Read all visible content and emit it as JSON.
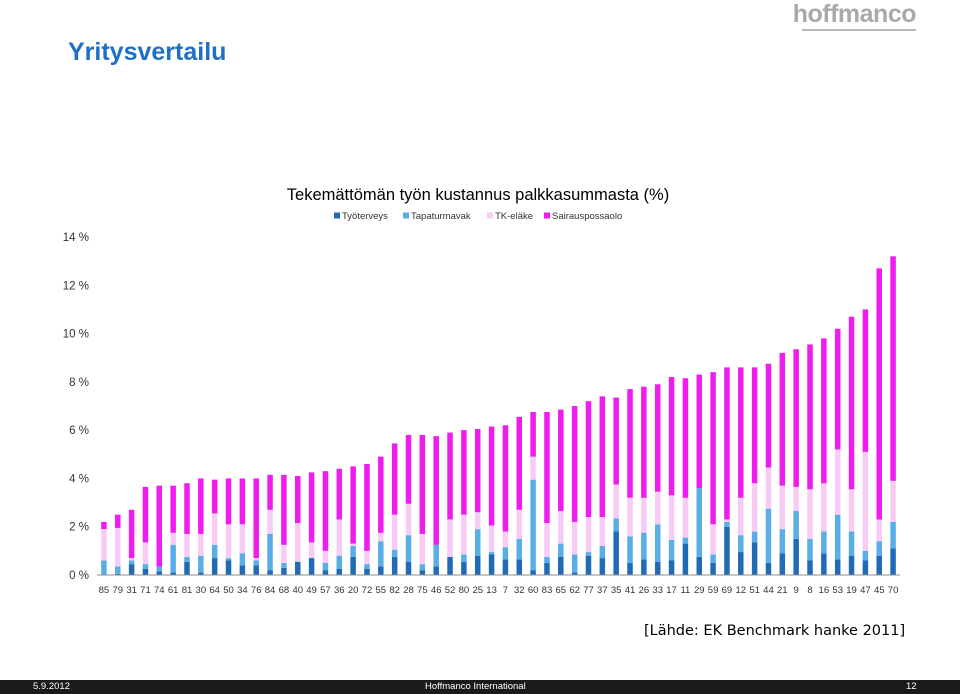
{
  "logo_text": "hoffmanco",
  "page_title": "Yritysvertailu",
  "source_note": "[Lähde: EK Benchmark hanke 2011]",
  "footer": {
    "date": "5.9.2012",
    "center": "Hoffmanco International",
    "page": "12"
  },
  "chart_data": {
    "type": "bar",
    "stacked": true,
    "title": "Tekemättömän työn kustannus  palkkasummasta (%)",
    "xlabel": "",
    "ylabel": "",
    "ylim": [
      0,
      14
    ],
    "yticks": [
      0,
      2,
      4,
      6,
      8,
      10,
      12,
      14
    ],
    "ytick_labels": [
      "0 %",
      "2 %",
      "4 %",
      "6 %",
      "8 %",
      "10 %",
      "12 %",
      "14 %"
    ],
    "grid": false,
    "legend_position": "top",
    "categories": [
      "85",
      "79",
      "31",
      "71",
      "74",
      "61",
      "81",
      "30",
      "64",
      "50",
      "34",
      "76",
      "84",
      "68",
      "40",
      "49",
      "57",
      "36",
      "20",
      "72",
      "55",
      "82",
      "28",
      "75",
      "46",
      "52",
      "80",
      "25",
      "13",
      "7",
      "32",
      "60",
      "83",
      "65",
      "62",
      "77",
      "37",
      "35",
      "41",
      "26",
      "33",
      "17",
      "11",
      "29",
      "59",
      "69",
      "12",
      "51",
      "44",
      "21",
      "9",
      "8",
      "16",
      "53",
      "19",
      "47",
      "45",
      "70"
    ],
    "series": [
      {
        "name": "Työterveys",
        "color": "#1f6bb5",
        "values": [
          0.0,
          0.05,
          0.45,
          0.25,
          0.15,
          0.1,
          0.55,
          0.1,
          0.7,
          0.6,
          0.4,
          0.4,
          0.2,
          0.3,
          0.55,
          0.7,
          0.2,
          0.25,
          0.75,
          0.25,
          0.35,
          0.75,
          0.55,
          0.2,
          0.35,
          0.75,
          0.55,
          0.8,
          0.85,
          0.65,
          0.65,
          0.2,
          0.5,
          0.75,
          0.1,
          0.8,
          0.7,
          1.8,
          0.5,
          0.65,
          0.55,
          0.6,
          1.3,
          0.75,
          0.5,
          2.0,
          0.95,
          1.35,
          0.5,
          0.9,
          1.5,
          0.6,
          0.9,
          0.65,
          0.8,
          0.6,
          0.8,
          1.1
        ]
      },
      {
        "name": "Tapaturmavak",
        "color": "#5aaee6",
        "values": [
          0.6,
          0.3,
          0.15,
          0.2,
          0.2,
          1.15,
          0.2,
          0.7,
          0.55,
          0.1,
          0.5,
          0.2,
          1.5,
          0.2,
          0.0,
          0.0,
          0.3,
          0.55,
          0.45,
          0.2,
          1.05,
          0.3,
          1.1,
          0.25,
          0.9,
          0.0,
          0.3,
          1.1,
          0.1,
          0.5,
          0.85,
          3.75,
          0.25,
          0.55,
          0.75,
          0.15,
          0.5,
          0.55,
          1.1,
          1.1,
          1.55,
          0.85,
          0.25,
          2.85,
          0.35,
          0.2,
          0.7,
          0.45,
          2.25,
          1.0,
          1.15,
          0.9,
          0.9,
          1.85,
          1.0,
          0.4,
          0.6,
          1.1
        ]
      },
      {
        "name": "TK-eläke",
        "color": "#f6ccf5",
        "values": [
          1.3,
          1.6,
          0.1,
          0.9,
          0.0,
          0.5,
          0.95,
          0.9,
          1.3,
          1.4,
          1.2,
          0.1,
          1.0,
          0.75,
          1.6,
          0.65,
          0.5,
          1.5,
          0.1,
          0.55,
          0.35,
          1.45,
          1.3,
          1.25,
          0.0,
          1.55,
          1.65,
          0.7,
          1.1,
          0.65,
          1.2,
          0.95,
          1.4,
          1.35,
          1.35,
          1.45,
          1.2,
          1.4,
          1.6,
          1.45,
          1.35,
          1.85,
          1.65,
          0.0,
          1.25,
          0.1,
          1.55,
          2.0,
          1.7,
          1.8,
          1.0,
          2.05,
          2.0,
          2.7,
          1.75,
          4.1,
          0.9,
          1.7
        ]
      },
      {
        "name": "Sairauspossaolo",
        "color": "#ee1ded",
        "values": [
          0.3,
          0.55,
          2.0,
          2.3,
          3.35,
          1.95,
          2.1,
          2.3,
          1.4,
          1.9,
          1.9,
          3.3,
          1.45,
          2.9,
          1.95,
          2.9,
          3.3,
          2.1,
          3.2,
          3.6,
          3.15,
          2.95,
          2.85,
          4.1,
          4.5,
          3.6,
          3.5,
          3.45,
          4.1,
          4.4,
          3.85,
          1.85,
          4.6,
          4.2,
          4.8,
          4.8,
          5.0,
          3.6,
          4.5,
          4.6,
          4.45,
          4.9,
          4.95,
          4.7,
          6.3,
          6.3,
          5.4,
          4.8,
          4.3,
          5.5,
          5.7,
          6.0,
          6.0,
          5.0,
          7.15,
          5.9,
          10.4,
          9.3
        ]
      }
    ]
  }
}
